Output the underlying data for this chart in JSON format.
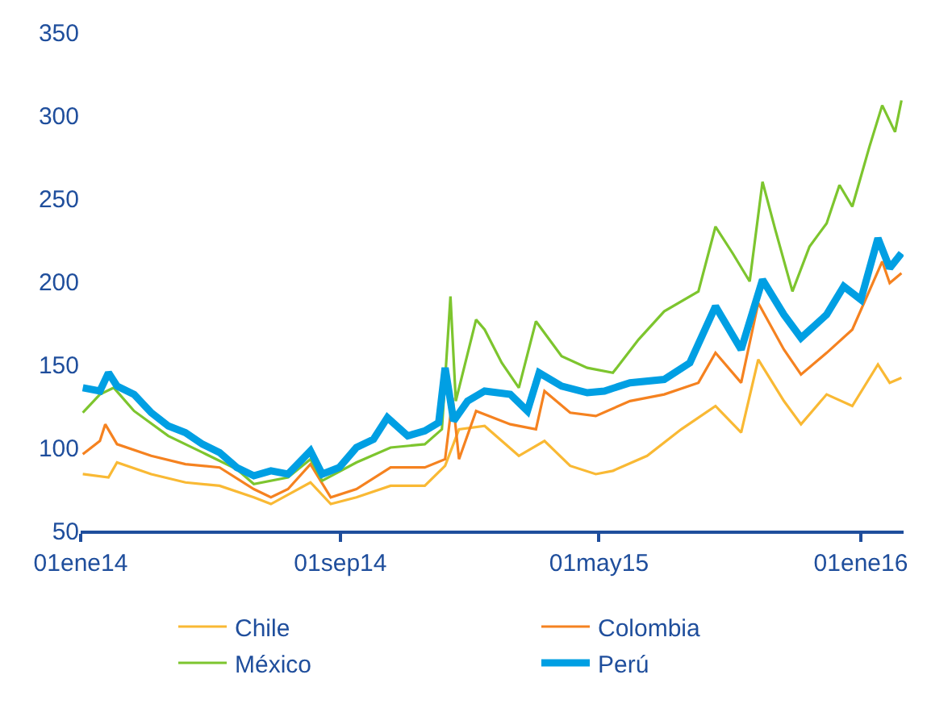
{
  "chart_data": {
    "type": "line",
    "xlim": [
      "2014-01-01",
      "2016-02-10"
    ],
    "xticks": [
      {
        "value": "2014-01-01",
        "label": "01ene14"
      },
      {
        "value": "2014-09-01",
        "label": "01sep14"
      },
      {
        "value": "2015-05-01",
        "label": "01may15"
      },
      {
        "value": "2016-01-01",
        "label": "01ene16"
      }
    ],
    "ylim": [
      50,
      350
    ],
    "yticks": [
      50,
      100,
      150,
      200,
      250,
      300,
      350
    ],
    "legend": "bottom",
    "line_style": "solid",
    "marker": "none",
    "series": [
      {
        "name": "Chile",
        "color": "#f9b934",
        "x": [
          "2014-01-03",
          "2014-01-27",
          "2014-02-04",
          "2014-03-08",
          "2014-04-09",
          "2014-05-11",
          "2014-06-12",
          "2014-06-28",
          "2014-08-04",
          "2014-08-23",
          "2014-09-16",
          "2014-10-18",
          "2014-11-19",
          "2014-12-08",
          "2014-12-21",
          "2015-01-14",
          "2015-02-15",
          "2015-03-11",
          "2015-04-04",
          "2015-04-28",
          "2015-05-14",
          "2015-06-15",
          "2015-07-17",
          "2015-08-18",
          "2015-09-11",
          "2015-09-27",
          "2015-10-21",
          "2015-11-06",
          "2015-11-30",
          "2015-12-24",
          "2016-01-17",
          "2016-01-28",
          "2016-02-08"
        ],
        "values": [
          84,
          82,
          91,
          84,
          79,
          77,
          70,
          66,
          79,
          66,
          70,
          77,
          77,
          89,
          111,
          113,
          95,
          104,
          89,
          84,
          86,
          95,
          111,
          125,
          109,
          153,
          128,
          114,
          132,
          125,
          150,
          139,
          142
        ]
      },
      {
        "name": "Colombia",
        "color": "#f58220",
        "x": [
          "2014-01-03",
          "2014-01-19",
          "2014-01-24",
          "2014-02-04",
          "2014-03-08",
          "2014-04-09",
          "2014-05-11",
          "2014-06-12",
          "2014-06-28",
          "2014-07-14",
          "2014-08-04",
          "2014-08-23",
          "2014-09-16",
          "2014-10-18",
          "2014-11-19",
          "2014-12-08",
          "2014-12-15",
          "2014-12-21",
          "2015-01-06",
          "2015-02-07",
          "2015-03-03",
          "2015-03-11",
          "2015-04-04",
          "2015-04-28",
          "2015-05-30",
          "2015-07-01",
          "2015-08-02",
          "2015-08-18",
          "2015-09-11",
          "2015-09-27",
          "2015-10-21",
          "2015-11-06",
          "2015-11-30",
          "2015-12-24",
          "2016-01-21",
          "2016-01-28",
          "2016-02-08"
        ],
        "values": [
          96,
          104,
          114,
          102,
          95,
          90,
          88,
          75,
          70,
          75,
          90,
          70,
          75,
          88,
          88,
          93,
          130,
          93,
          122,
          114,
          111,
          134,
          121,
          119,
          128,
          132,
          139,
          157,
          139,
          187,
          159,
          144,
          157,
          171,
          212,
          199,
          205
        ]
      },
      {
        "name": "México",
        "color": "#7dc52e",
        "x": [
          "2014-01-03",
          "2014-01-19",
          "2014-02-01",
          "2014-02-20",
          "2014-03-24",
          "2014-04-25",
          "2014-05-27",
          "2014-06-12",
          "2014-07-14",
          "2014-08-04",
          "2014-08-15",
          "2014-09-16",
          "2014-10-18",
          "2014-11-19",
          "2014-12-05",
          "2014-12-13",
          "2014-12-18",
          "2015-01-06",
          "2015-01-14",
          "2015-01-30",
          "2015-02-15",
          "2015-03-03",
          "2015-03-27",
          "2015-04-20",
          "2015-05-14",
          "2015-06-07",
          "2015-07-01",
          "2015-08-02",
          "2015-08-18",
          "2015-09-03",
          "2015-09-19",
          "2015-10-01",
          "2015-10-13",
          "2015-10-29",
          "2015-11-14",
          "2015-11-30",
          "2015-12-12",
          "2015-12-24",
          "2016-01-09",
          "2016-01-21",
          "2016-02-02",
          "2016-02-08"
        ],
        "values": [
          121,
          132,
          136,
          122,
          107,
          97,
          87,
          78,
          82,
          93,
          80,
          91,
          100,
          102,
          111,
          191,
          128,
          177,
          171,
          151,
          136,
          176,
          155,
          148,
          145,
          165,
          182,
          194,
          233,
          217,
          200,
          260,
          231,
          194,
          221,
          235,
          258,
          245,
          281,
          306,
          290,
          309
        ]
      },
      {
        "name": "Perú",
        "color": "#009fe3",
        "x": [
          "2014-01-03",
          "2014-01-19",
          "2014-01-27",
          "2014-02-04",
          "2014-02-20",
          "2014-03-08",
          "2014-03-24",
          "2014-04-09",
          "2014-04-25",
          "2014-05-11",
          "2014-05-27",
          "2014-06-12",
          "2014-06-28",
          "2014-07-14",
          "2014-08-04",
          "2014-08-15",
          "2014-08-31",
          "2014-09-16",
          "2014-10-02",
          "2014-10-15",
          "2014-11-03",
          "2014-11-19",
          "2014-12-02",
          "2014-12-08",
          "2014-12-16",
          "2014-12-29",
          "2015-01-14",
          "2015-02-07",
          "2015-02-23",
          "2015-03-06",
          "2015-03-27",
          "2015-04-20",
          "2015-05-06",
          "2015-05-30",
          "2015-07-01",
          "2015-07-25",
          "2015-08-18",
          "2015-09-11",
          "2015-10-01",
          "2015-10-21",
          "2015-11-06",
          "2015-11-30",
          "2015-12-16",
          "2016-01-01",
          "2016-01-17",
          "2016-01-28",
          "2016-02-08"
        ],
        "values": [
          136,
          134,
          145,
          137,
          132,
          121,
          113,
          109,
          102,
          97,
          88,
          83,
          86,
          84,
          98,
          84,
          88,
          100,
          105,
          118,
          107,
          110,
          115,
          148,
          116,
          128,
          134,
          132,
          122,
          145,
          137,
          133,
          134,
          139,
          141,
          151,
          185,
          159,
          201,
          180,
          166,
          180,
          197,
          189,
          226,
          208,
          217
        ]
      }
    ]
  }
}
